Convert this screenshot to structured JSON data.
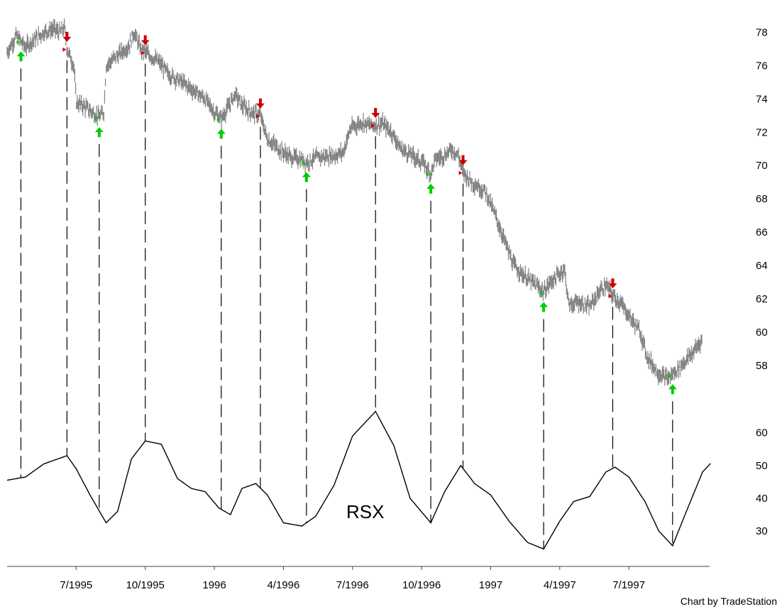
{
  "chart_data": [
    {
      "type": "line",
      "panel": "price",
      "y_ticks": [
        58,
        60,
        62,
        64,
        66,
        68,
        70,
        72,
        74,
        76,
        78
      ],
      "ylim": [
        56.5,
        79
      ],
      "x_labels": [
        "7/1995",
        "10/1995",
        "1996",
        "4/1996",
        "7/1996",
        "10/1996",
        "1997",
        "4/1997",
        "7/1997"
      ],
      "x_label_month_offsets": [
        3,
        6,
        9,
        12,
        15,
        18,
        21,
        24,
        27
      ],
      "xlim_months": [
        0,
        30.2
      ],
      "series": [
        {
          "style": "bar (high/low), gray",
          "points_month_value": [
            [
              0.0,
              76.8
            ],
            [
              0.4,
              77.8
            ],
            [
              0.8,
              77.1
            ],
            [
              1.2,
              77.6
            ],
            [
              1.6,
              78.0
            ],
            [
              2.0,
              78.2
            ],
            [
              2.3,
              78.0
            ],
            [
              2.5,
              78.3
            ],
            [
              2.6,
              77.0
            ],
            [
              2.9,
              76.0
            ],
            [
              3.0,
              73.8
            ],
            [
              3.3,
              73.6
            ],
            [
              3.6,
              73.3
            ],
            [
              4.0,
              72.9
            ],
            [
              4.2,
              73.2
            ],
            [
              4.3,
              76.0
            ],
            [
              4.8,
              76.6
            ],
            [
              5.3,
              77.2
            ],
            [
              5.5,
              78.0
            ],
            [
              5.8,
              77.0
            ],
            [
              6.2,
              76.6
            ],
            [
              6.6,
              76.2
            ],
            [
              7.0,
              75.5
            ],
            [
              7.6,
              75.0
            ],
            [
              8.1,
              74.5
            ],
            [
              8.6,
              74.0
            ],
            [
              9.0,
              73.2
            ],
            [
              9.3,
              72.8
            ],
            [
              9.6,
              73.5
            ],
            [
              9.9,
              74.3
            ],
            [
              10.2,
              73.6
            ],
            [
              10.6,
              73.2
            ],
            [
              11.0,
              73.0
            ],
            [
              11.3,
              71.6
            ],
            [
              11.8,
              71.0
            ],
            [
              12.3,
              70.5
            ],
            [
              12.7,
              70.4
            ],
            [
              13.0,
              70.2
            ],
            [
              13.5,
              70.5
            ],
            [
              14.2,
              70.6
            ],
            [
              14.6,
              70.8
            ],
            [
              14.9,
              72.2
            ],
            [
              15.4,
              72.6
            ],
            [
              15.8,
              72.4
            ],
            [
              16.3,
              72.5
            ],
            [
              16.7,
              72.0
            ],
            [
              17.1,
              71.0
            ],
            [
              17.6,
              70.6
            ],
            [
              18.1,
              70.1
            ],
            [
              18.4,
              69.5
            ],
            [
              18.6,
              70.4
            ],
            [
              19.0,
              70.6
            ],
            [
              19.3,
              71.0
            ],
            [
              19.6,
              70.6
            ],
            [
              19.8,
              69.6
            ],
            [
              20.2,
              69.0
            ],
            [
              20.8,
              68.4
            ],
            [
              21.2,
              67.0
            ],
            [
              21.6,
              65.5
            ],
            [
              22.0,
              64.0
            ],
            [
              22.6,
              63.2
            ],
            [
              23.0,
              62.8
            ],
            [
              23.3,
              62.4
            ],
            [
              23.6,
              63.0
            ],
            [
              24.0,
              63.5
            ],
            [
              24.2,
              63.8
            ],
            [
              24.4,
              61.6
            ],
            [
              24.8,
              61.8
            ],
            [
              25.3,
              61.5
            ],
            [
              25.7,
              62.4
            ],
            [
              26.0,
              62.8
            ],
            [
              26.3,
              62.2
            ],
            [
              26.6,
              61.8
            ],
            [
              27.0,
              61.0
            ],
            [
              27.5,
              60.0
            ],
            [
              27.8,
              58.5
            ],
            [
              28.3,
              57.5
            ],
            [
              28.7,
              57.2
            ],
            [
              29.0,
              57.6
            ],
            [
              29.4,
              58.2
            ],
            [
              29.8,
              58.8
            ],
            [
              30.2,
              59.6
            ]
          ]
        }
      ],
      "markers": {
        "up_months": [
          0.6,
          4.0,
          9.3,
          13.0,
          18.4,
          23.3,
          28.9
        ],
        "down_months": [
          2.6,
          6.0,
          11.0,
          16.0,
          19.8,
          26.3
        ],
        "up_color": "#00cc00",
        "down_color": "#cc0000"
      }
    },
    {
      "type": "line",
      "panel": "indicator",
      "title": "RSX",
      "y_ticks": [
        30,
        40,
        50,
        60
      ],
      "ylim": [
        22,
        66
      ],
      "series": [
        {
          "points_month_value": [
            [
              0.0,
              45.5
            ],
            [
              0.8,
              46.5
            ],
            [
              1.6,
              50.5
            ],
            [
              2.6,
              53.0
            ],
            [
              3.0,
              49.0
            ],
            [
              3.6,
              41.0
            ],
            [
              4.3,
              32.5
            ],
            [
              4.8,
              36.0
            ],
            [
              5.4,
              52.0
            ],
            [
              6.0,
              57.5
            ],
            [
              6.7,
              56.5
            ],
            [
              7.4,
              46.0
            ],
            [
              8.0,
              43.0
            ],
            [
              8.6,
              42.0
            ],
            [
              9.2,
              37.0
            ],
            [
              9.7,
              35.0
            ],
            [
              10.2,
              43.0
            ],
            [
              10.8,
              44.5
            ],
            [
              11.3,
              41.0
            ],
            [
              12.0,
              32.5
            ],
            [
              12.8,
              31.5
            ],
            [
              13.4,
              34.5
            ],
            [
              14.2,
              44.0
            ],
            [
              15.0,
              59.0
            ],
            [
              16.0,
              66.5
            ],
            [
              16.8,
              56.0
            ],
            [
              17.5,
              40.0
            ],
            [
              18.4,
              32.5
            ],
            [
              19.0,
              42.0
            ],
            [
              19.7,
              50.0
            ],
            [
              20.3,
              44.5
            ],
            [
              21.0,
              41.0
            ],
            [
              21.8,
              33.0
            ],
            [
              22.6,
              26.5
            ],
            [
              23.3,
              24.5
            ],
            [
              24.0,
              33.0
            ],
            [
              24.6,
              39.0
            ],
            [
              25.3,
              40.5
            ],
            [
              26.0,
              48.0
            ],
            [
              26.4,
              49.5
            ],
            [
              27.0,
              46.5
            ],
            [
              27.7,
              39.0
            ],
            [
              28.3,
              30.0
            ],
            [
              28.9,
              25.5
            ],
            [
              29.5,
              36.0
            ],
            [
              30.2,
              48.0
            ],
            [
              31.0,
              54.0
            ]
          ]
        }
      ]
    }
  ],
  "credit": "Chart by TradeStation"
}
